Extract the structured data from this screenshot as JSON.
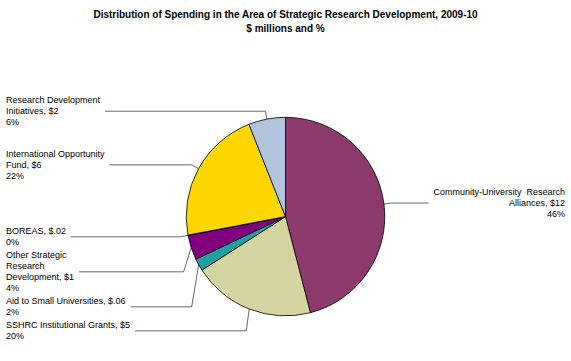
{
  "chart_data": {
    "type": "pie",
    "title": "Distribution of Spending in the Area of Strategic Research Development, 2009-10",
    "subtitle": "$ millions and %",
    "categories": [
      "Community-University  Research\nAlliances, $12\n46%",
      "SSHRC Institutional Grants, $5\n20%",
      "Aid to Small Universities, $.06\n2%",
      "Other Strategic\nResearch\nDevelopment, $1\n4%",
      "BOREAS, $.02\n0%",
      "International Opportunity\nFund, $6\n22%",
      "Research Development\nInitiatives, $2\n6%"
    ],
    "values": [
      46,
      20,
      2,
      4,
      0.077,
      22,
      6
    ],
    "colors": [
      "#8B3A6B",
      "#D4D4A0",
      "#20A0A0",
      "#800080",
      "#FF00FF",
      "#FFD700",
      "#B0C4DE"
    ]
  }
}
